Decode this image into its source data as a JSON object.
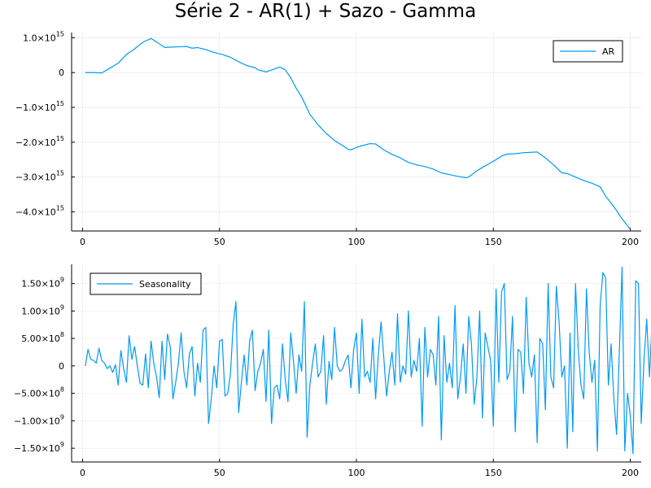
{
  "title": "Série 2 - AR(1) + Sazo - Gamma",
  "colors": {
    "series": "#009af9",
    "grid": "#e6e6e6",
    "axis": "#000000"
  },
  "chart_data": [
    {
      "type": "line",
      "xlim": [
        -4,
        204
      ],
      "ylim": [
        -4550000000000000.0,
        1150000000000000.0
      ],
      "grid": true,
      "legend_position": "top-right",
      "xticks": [
        {
          "value": 0,
          "label": "0"
        },
        {
          "value": 50,
          "label": "50"
        },
        {
          "value": 100,
          "label": "100"
        },
        {
          "value": 150,
          "label": "150"
        },
        {
          "value": 200,
          "label": "200"
        }
      ],
      "yticks": [
        {
          "value": 1000000000000000.0,
          "mant": "1.0×10",
          "exp": "15"
        },
        {
          "value": 0,
          "mant": "0",
          "exp": ""
        },
        {
          "value": -1000000000000000.0,
          "mant": "−1.0×10",
          "exp": "15"
        },
        {
          "value": -2000000000000000.0,
          "mant": "−2.0×10",
          "exp": "15"
        },
        {
          "value": -3000000000000000.0,
          "mant": "−3.0×10",
          "exp": "15"
        },
        {
          "value": -4000000000000000.0,
          "mant": "−4.0×10",
          "exp": "15"
        }
      ],
      "series": [
        {
          "name": "AR",
          "x": [
            1,
            4,
            7,
            9,
            13,
            16,
            19,
            22,
            25,
            27,
            30,
            32,
            35,
            38,
            40,
            42,
            45,
            48,
            51,
            54,
            57,
            60,
            63,
            64,
            67,
            70,
            72,
            74,
            76,
            78,
            80,
            83,
            86,
            89,
            92,
            95,
            97,
            98,
            100,
            102,
            105,
            107,
            110,
            113,
            116,
            119,
            122,
            125,
            128,
            131,
            134,
            137,
            140,
            141,
            144,
            147,
            150,
            153,
            155,
            158,
            161,
            164,
            166,
            169,
            172,
            175,
            177,
            180,
            183,
            186,
            189,
            191,
            194,
            197,
            200
          ],
          "values": [
            0,
            0,
            -10000000000000.0,
            80000000000000.0,
            270000000000000.0,
            520000000000000.0,
            680000000000000.0,
            870000000000000.0,
            980000000000000.0,
            880000000000000.0,
            720000000000000.0,
            730000000000000.0,
            740000000000000.0,
            750000000000000.0,
            700000000000000.0,
            720000000000000.0,
            660000000000000.0,
            580000000000000.0,
            520000000000000.0,
            440000000000000.0,
            310000000000000.0,
            200000000000000.0,
            140000000000000.0,
            80000000000000.0,
            20000000000000.0,
            100000000000000.0,
            160000000000000.0,
            80000000000000.0,
            -150000000000000.0,
            -450000000000000.0,
            -700000000000000.0,
            -1200000000000000.0,
            -1500000000000000.0,
            -1750000000000000.0,
            -1950000000000000.0,
            -2100000000000000.0,
            -2200000000000000.0,
            -2220000000000000.0,
            -2150000000000000.0,
            -2100000000000000.0,
            -2040000000000000.0,
            -2050000000000000.0,
            -2220000000000000.0,
            -2350000000000000.0,
            -2450000000000000.0,
            -2580000000000000.0,
            -2650000000000000.0,
            -2700000000000000.0,
            -2770000000000000.0,
            -2880000000000000.0,
            -2930000000000000.0,
            -2980000000000000.0,
            -3020000000000000.0,
            -3000000000000000.0,
            -2820000000000000.0,
            -2680000000000000.0,
            -2550000000000000.0,
            -2400000000000000.0,
            -2340000000000000.0,
            -2330000000000000.0,
            -2300000000000000.0,
            -2290000000000000.0,
            -2280000000000000.0,
            -2450000000000000.0,
            -2650000000000000.0,
            -2880000000000000.0,
            -2900000000000000.0,
            -3000000000000000.0,
            -3100000000000000.0,
            -3180000000000000.0,
            -3280000000000000.0,
            -3550000000000000.0,
            -3850000000000000.0,
            -4200000000000000.0,
            -4500000000000000.0
          ]
        }
      ]
    },
    {
      "type": "line",
      "xlim": [
        -4,
        204
      ],
      "ylim": [
        -1750000000.0,
        1850000000.0
      ],
      "grid": true,
      "legend_position": "top-left",
      "xticks": [
        {
          "value": 0,
          "label": "0"
        },
        {
          "value": 50,
          "label": "50"
        },
        {
          "value": 100,
          "label": "100"
        },
        {
          "value": 150,
          "label": "150"
        },
        {
          "value": 200,
          "label": "200"
        }
      ],
      "yticks": [
        {
          "value": 1500000000.0,
          "mant": "1.50×10",
          "exp": "9"
        },
        {
          "value": 1000000000.0,
          "mant": "1.00×10",
          "exp": "9"
        },
        {
          "value": 500000000.0,
          "mant": "5.00×10",
          "exp": "8"
        },
        {
          "value": 0,
          "mant": "0",
          "exp": ""
        },
        {
          "value": -500000000.0,
          "mant": "−5.00×10",
          "exp": "8"
        },
        {
          "value": -1000000000.0,
          "mant": "−1.00×10",
          "exp": "9"
        },
        {
          "value": -1500000000.0,
          "mant": "−1.50×10",
          "exp": "9"
        }
      ],
      "series": [
        {
          "name": "Seasonality",
          "x_start": 1,
          "x_step": 1,
          "values": [
            0,
            300000000.0,
            120000000.0,
            100000000.0,
            50000000.0,
            320000000.0,
            100000000.0,
            50000000.0,
            -50000000.0,
            0,
            -120000000.0,
            20000000.0,
            -350000000.0,
            280000000.0,
            -50000000.0,
            -300000000.0,
            550000000.0,
            120000000.0,
            350000000.0,
            0,
            -320000000.0,
            -350000000.0,
            220000000.0,
            -400000000.0,
            450000000.0,
            50000000.0,
            -200000000.0,
            -580000000.0,
            450000000.0,
            -250000000.0,
            580000000.0,
            350000000.0,
            -600000000.0,
            -300000000.0,
            50000000.0,
            600000000.0,
            -100000000.0,
            -400000000.0,
            220000000.0,
            350000000.0,
            -550000000.0,
            50000000.0,
            -300000000.0,
            650000000.0,
            700000000.0,
            -1050000000.0,
            -600000000.0,
            0,
            -400000000.0,
            450000000.0,
            480000000.0,
            -550000000.0,
            -500000000.0,
            -150000000.0,
            750000000.0,
            1170000000.0,
            -850000000.0,
            -300000000.0,
            200000000.0,
            -350000000.0,
            450000000.0,
            650000000.0,
            -450000000.0,
            -100000000.0,
            50000000.0,
            300000000.0,
            -650000000.0,
            650000000.0,
            -1050000000.0,
            -400000000.0,
            -350000000.0,
            -600000000.0,
            400000000.0,
            -250000000.0,
            -650000000.0,
            600000000.0,
            100000000.0,
            -500000000.0,
            200000000.0,
            -100000000.0,
            1170000000.0,
            -1300000000.0,
            -350000000.0,
            50000000.0,
            400000000.0,
            -200000000.0,
            -100000000.0,
            550000000.0,
            -700000000.0,
            80000000.0,
            -250000000.0,
            700000000.0,
            0,
            -100000000.0,
            -50000000.0,
            100000000.0,
            200000000.0,
            -400000000.0,
            300000000.0,
            600000000.0,
            -500000000.0,
            850000000.0,
            -200000000.0,
            -100000000.0,
            -300000000.0,
            500000000.0,
            -600000000.0,
            200000000.0,
            800000000.0,
            150000000.0,
            -550000000.0,
            -100000000.0,
            250000000.0,
            -350000000.0,
            950000000.0,
            -300000000.0,
            0,
            -150000000.0,
            1000000000.0,
            -200000000.0,
            100000000.0,
            -100000000.0,
            500000000.0,
            -1100000000.0,
            700000000.0,
            -200000000.0,
            300000000.0,
            200000000.0,
            -350000000.0,
            900000000.0,
            -1350000000.0,
            550000000.0,
            -300000000.0,
            50000000.0,
            -400000000.0,
            1100000000.0,
            -600000000.0,
            -200000000.0,
            400000000.0,
            -500000000.0,
            900000000.0,
            400000000.0,
            -700000000.0,
            -200000000.0,
            1000000000.0,
            -950000000.0,
            600000000.0,
            350000000.0,
            100000000.0,
            -1100000000.0,
            1400000000.0,
            -300000000.0,
            1350000000.0,
            1500000000.0,
            -250000000.0,
            -100000000.0,
            900000000.0,
            -1200000000.0,
            300000000.0,
            250000000.0,
            -500000000.0,
            1250000000.0,
            50000000.0,
            -200000000.0,
            200000000.0,
            -1400000000.0,
            500000000.0,
            400000000.0,
            -800000000.0,
            1500000000.0,
            -200000000.0,
            -400000000.0,
            1450000000.0,
            800000000.0,
            -200000000.0,
            0,
            -1500000000.0,
            600000000.0,
            -1200000000.0,
            1500000000.0,
            300000000.0,
            -350000000.0,
            -600000000.0,
            1400000000.0,
            250000000.0,
            -300000000.0,
            100000000.0,
            -1550000000.0,
            1100000000.0,
            1700000000.0,
            1600000000.0,
            -350000000.0,
            400000000.0,
            -600000000.0,
            -1250000000.0,
            250000000.0,
            1800000000.0,
            -1550000000.0,
            -500000000.0,
            -900000000.0,
            -1600000000.0,
            1550000000.0,
            1500000000.0,
            -1050000000.0,
            100000000.0,
            850000000.0,
            -200000000.0,
            850000000.0
          ]
        }
      ]
    }
  ]
}
